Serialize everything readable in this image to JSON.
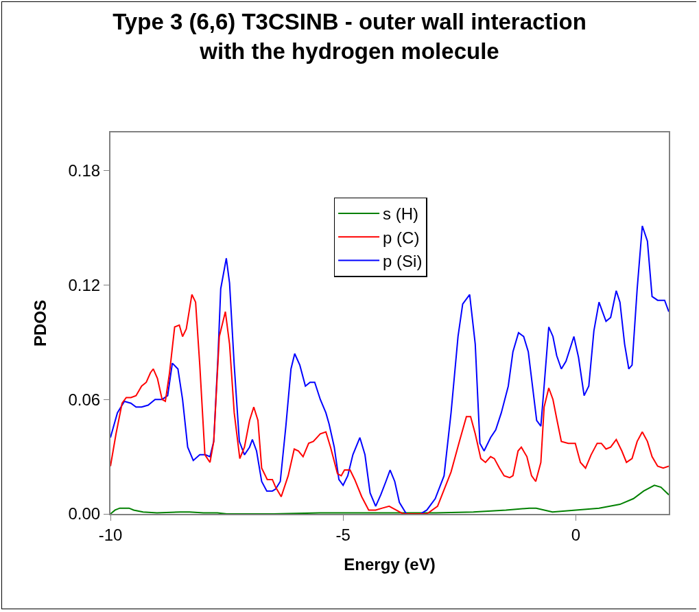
{
  "chart_data": {
    "type": "line",
    "title": "Type 3 (6,6) T3CSINB - outer wall interaction\nwith the hydrogen molecule",
    "xlabel": "Energy (eV)",
    "ylabel": "PDOS",
    "xlim": [
      -10,
      2
    ],
    "xticks": [
      -10,
      -5,
      0
    ],
    "ylim": [
      0,
      0.2
    ],
    "yticks": [
      {
        "value": 0,
        "label": "0.00"
      },
      {
        "value": 0.06,
        "label": "0.06"
      },
      {
        "value": 0.12,
        "label": "0.12"
      },
      {
        "value": 0.18,
        "label": "0.18"
      }
    ],
    "grid": false,
    "legend": "top",
    "marker": "none",
    "line_style": "solid",
    "series": [
      {
        "name": "s (H)",
        "color": "#008000",
        "x": [
          -10,
          -9.9,
          -9.8,
          -9.6,
          -9.5,
          -9.3,
          -9.0,
          -8.5,
          -8.3,
          -8.0,
          -7.7,
          -7.5,
          -6.5,
          -5.5,
          -3.0,
          -2.2,
          -1.5,
          -1.0,
          -0.85,
          -0.5,
          0,
          0.5,
          0.95,
          1.24,
          1.46,
          1.69,
          1.83,
          2
        ],
        "values": [
          0,
          0.002,
          0.003,
          0.003,
          0.002,
          0.001,
          0.0005,
          0.001,
          0.001,
          0.0005,
          0.0005,
          0,
          0,
          0.0005,
          0.0005,
          0.001,
          0.002,
          0.003,
          0.003,
          0.001,
          0.002,
          0.003,
          0.005,
          0.008,
          0.012,
          0.015,
          0.014,
          0.01
        ]
      },
      {
        "name": "p (C)",
        "color": "#ff0000",
        "x": [
          -10,
          -9.88,
          -9.75,
          -9.66,
          -9.56,
          -9.45,
          -9.33,
          -9.23,
          -9.14,
          -9.08,
          -8.99,
          -8.89,
          -8.82,
          -8.73,
          -8.62,
          -8.52,
          -8.45,
          -8.37,
          -8.25,
          -8.17,
          -8.08,
          -7.97,
          -7.86,
          -7.78,
          -7.66,
          -7.53,
          -7.44,
          -7.34,
          -7.22,
          -7.12,
          -7.01,
          -6.92,
          -6.83,
          -6.75,
          -6.63,
          -6.52,
          -6.45,
          -6.33,
          -6.18,
          -6.05,
          -5.96,
          -5.86,
          -5.74,
          -5.64,
          -5.49,
          -5.37,
          -5.27,
          -5.12,
          -5.04,
          -4.97,
          -4.85,
          -4.75,
          -4.6,
          -4.45,
          -4.3,
          -4.16,
          -4.01,
          -3.86,
          -3.71,
          -3.2,
          -2.97,
          -2.68,
          -2.5,
          -2.35,
          -2.26,
          -2.16,
          -2.04,
          -1.94,
          -1.83,
          -1.75,
          -1.64,
          -1.54,
          -1.42,
          -1.35,
          -1.24,
          -1.17,
          -1.05,
          -0.95,
          -0.86,
          -0.75,
          -0.68,
          -0.58,
          -0.49,
          -0.41,
          -0.31,
          -0.16,
          -0.01,
          0.1,
          0.21,
          0.33,
          0.46,
          0.55,
          0.65,
          0.75,
          0.87,
          0.99,
          1.09,
          1.21,
          1.32,
          1.43,
          1.54,
          1.64,
          1.76,
          1.88,
          2
        ],
        "values": [
          0.025,
          0.042,
          0.058,
          0.061,
          0.061,
          0.062,
          0.067,
          0.069,
          0.074,
          0.076,
          0.071,
          0.06,
          0.059,
          0.074,
          0.098,
          0.099,
          0.093,
          0.097,
          0.115,
          0.111,
          0.078,
          0.031,
          0.027,
          0.038,
          0.093,
          0.106,
          0.089,
          0.053,
          0.029,
          0.035,
          0.049,
          0.056,
          0.049,
          0.024,
          0.018,
          0.018,
          0.014,
          0.009,
          0.02,
          0.034,
          0.033,
          0.03,
          0.037,
          0.038,
          0.042,
          0.043,
          0.035,
          0.021,
          0.02,
          0.023,
          0.023,
          0.018,
          0.009,
          0.002,
          0.002,
          0.003,
          0.004,
          0.002,
          0,
          0,
          0.004,
          0.022,
          0.038,
          0.051,
          0.051,
          0.042,
          0.029,
          0.027,
          0.03,
          0.029,
          0.024,
          0.02,
          0.019,
          0.02,
          0.033,
          0.035,
          0.03,
          0.02,
          0.017,
          0.027,
          0.056,
          0.066,
          0.06,
          0.05,
          0.038,
          0.037,
          0.037,
          0.027,
          0.024,
          0.031,
          0.037,
          0.037,
          0.034,
          0.035,
          0.039,
          0.033,
          0.027,
          0.029,
          0.038,
          0.043,
          0.038,
          0.03,
          0.025,
          0.024,
          0.025
        ]
      },
      {
        "name": "p (Si)",
        "color": "#0000ff",
        "x": [
          -10,
          -9.85,
          -9.7,
          -9.56,
          -9.45,
          -9.33,
          -9.19,
          -9.04,
          -8.89,
          -8.77,
          -8.67,
          -8.55,
          -8.45,
          -8.34,
          -8.22,
          -8.08,
          -7.96,
          -7.86,
          -7.78,
          -7.69,
          -7.63,
          -7.51,
          -7.44,
          -7.34,
          -7.23,
          -7.12,
          -7.01,
          -6.95,
          -6.86,
          -6.75,
          -6.64,
          -6.52,
          -6.45,
          -6.35,
          -6.23,
          -6.12,
          -6.04,
          -5.93,
          -5.81,
          -5.71,
          -5.61,
          -5.49,
          -5.37,
          -5.3,
          -5.19,
          -5.09,
          -5.0,
          -4.9,
          -4.79,
          -4.64,
          -4.53,
          -4.42,
          -4.3,
          -4.19,
          -4.08,
          -3.99,
          -3.89,
          -3.79,
          -3.64,
          -3.34,
          -3.2,
          -3.02,
          -2.83,
          -2.68,
          -2.53,
          -2.43,
          -2.28,
          -2.16,
          -2.06,
          -1.97,
          -1.83,
          -1.72,
          -1.6,
          -1.45,
          -1.35,
          -1.23,
          -1.12,
          -1.02,
          -0.93,
          -0.84,
          -0.75,
          -0.68,
          -0.58,
          -0.49,
          -0.41,
          -0.31,
          -0.21,
          -0.04,
          0.06,
          0.18,
          0.28,
          0.39,
          0.5,
          0.65,
          0.75,
          0.87,
          0.95,
          1.05,
          1.14,
          1.21,
          1.32,
          1.43,
          1.54,
          1.64,
          1.76,
          1.91,
          2
        ],
        "values": [
          0.04,
          0.053,
          0.059,
          0.058,
          0.056,
          0.056,
          0.057,
          0.06,
          0.06,
          0.062,
          0.079,
          0.076,
          0.06,
          0.035,
          0.028,
          0.031,
          0.031,
          0.03,
          0.038,
          0.082,
          0.118,
          0.134,
          0.121,
          0.078,
          0.038,
          0.031,
          0.035,
          0.039,
          0.033,
          0.017,
          0.012,
          0.012,
          0.013,
          0.017,
          0.046,
          0.076,
          0.084,
          0.078,
          0.067,
          0.069,
          0.069,
          0.06,
          0.053,
          0.047,
          0.035,
          0.018,
          0.015,
          0.02,
          0.031,
          0.04,
          0.031,
          0.011,
          0.004,
          0.01,
          0.017,
          0.023,
          0.017,
          0.006,
          0,
          0,
          0.002,
          0.008,
          0.02,
          0.053,
          0.093,
          0.11,
          0.115,
          0.089,
          0.037,
          0.033,
          0.04,
          0.044,
          0.053,
          0.067,
          0.085,
          0.095,
          0.093,
          0.085,
          0.067,
          0.049,
          0.046,
          0.067,
          0.098,
          0.093,
          0.083,
          0.076,
          0.08,
          0.093,
          0.082,
          0.062,
          0.067,
          0.096,
          0.111,
          0.101,
          0.103,
          0.117,
          0.111,
          0.089,
          0.076,
          0.078,
          0.118,
          0.151,
          0.143,
          0.114,
          0.112,
          0.112,
          0.106
        ]
      }
    ]
  }
}
